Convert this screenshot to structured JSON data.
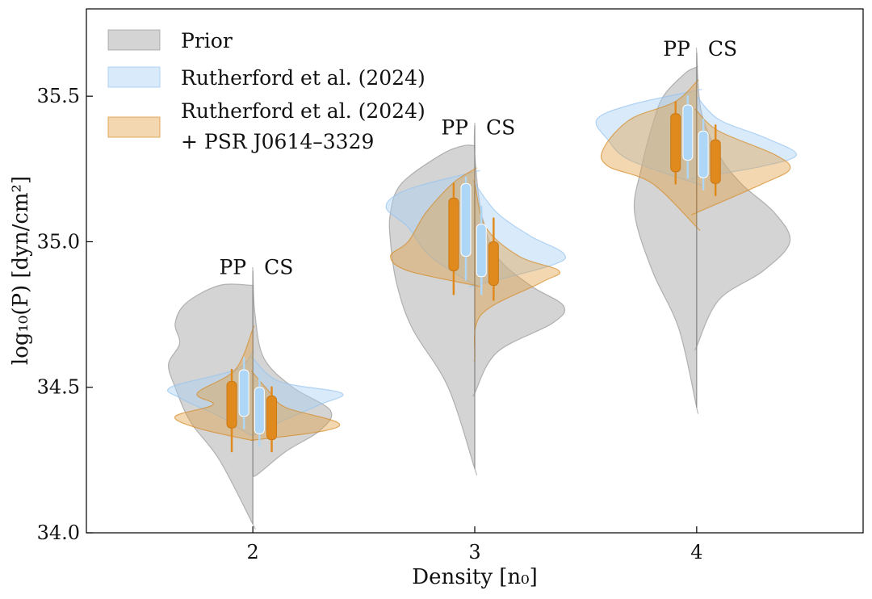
{
  "chart_data": {
    "type": "violin",
    "xlabel": "Density [n₀]",
    "ylabel": "log₁₀(P) [dyn/cm²]",
    "xlim": [
      1.25,
      4.75
    ],
    "ylim": [
      34.0,
      35.8
    ],
    "x_ticks": [
      2,
      3,
      4
    ],
    "x_tick_labels": [
      "2",
      "3",
      "4"
    ],
    "y_ticks": [
      34.0,
      34.5,
      35.0,
      35.5
    ],
    "y_tick_labels": [
      "34.0",
      "34.5",
      "35.0",
      "35.5"
    ],
    "legend_position": "upper-left",
    "legend": [
      {
        "label": "Prior",
        "color": "#b3b3b3"
      },
      {
        "label": "Rutherford et al. (2024)",
        "color": "#b8dbf7"
      },
      {
        "label": "Rutherford et al. (2024)",
        "label2": "+ PSR J0614–3329",
        "color": "#e8b56c"
      }
    ],
    "colors": {
      "prior": "#a0a0a0",
      "rutherford": "#a9d2f5",
      "psr": "#e09a3c",
      "box_orange": "#e08a1e",
      "box_blue": "#aed6f7"
    },
    "side_labels": [
      "PP",
      "CS"
    ],
    "groups": [
      {
        "x": 2,
        "prior": {
          "pp": {
            "y": [
              34.03,
              34.25,
              34.38,
              34.5,
              34.58,
              34.65,
              34.72,
              34.79,
              34.85
            ],
            "w": [
              0.0,
              0.15,
              0.28,
              0.35,
              0.38,
              0.33,
              0.35,
              0.3,
              0.15
            ]
          },
          "cs": {
            "y": [
              34.2,
              34.28,
              34.35,
              34.42,
              34.5,
              34.6,
              34.75,
              34.9
            ],
            "w": [
              0.02,
              0.15,
              0.3,
              0.35,
              0.18,
              0.05,
              0.01,
              0.0
            ]
          }
        },
        "rutherford": {
          "pp": {
            "y": [
              34.34,
              34.4,
              34.46,
              34.5,
              34.56,
              34.62
            ],
            "w": [
              0.02,
              0.15,
              0.32,
              0.37,
              0.08,
              0.0
            ]
          },
          "cs": {
            "y": [
              34.34,
              34.38,
              34.44,
              34.48,
              34.52,
              34.6
            ],
            "w": [
              0.02,
              0.12,
              0.3,
              0.4,
              0.12,
              0.0
            ]
          }
        },
        "psr": {
          "pp": {
            "y": [
              34.32,
              34.36,
              34.4,
              34.44,
              34.48,
              34.56,
              34.7
            ],
            "w": [
              0.02,
              0.25,
              0.35,
              0.18,
              0.25,
              0.08,
              0.0
            ]
          },
          "cs": {
            "y": [
              34.32,
              34.35,
              34.38,
              34.43,
              34.48,
              34.55
            ],
            "w": [
              0.02,
              0.32,
              0.38,
              0.15,
              0.08,
              0.0
            ]
          }
        },
        "boxes": {
          "pp": {
            "orange": {
              "whisker": [
                34.28,
                34.56
              ],
              "box": [
                34.36,
                34.52
              ]
            },
            "blue": {
              "whisker": [
                34.36,
                34.6
              ],
              "box": [
                34.4,
                34.56
              ]
            }
          },
          "cs": {
            "orange": {
              "whisker": [
                34.28,
                34.5
              ],
              "box": [
                34.32,
                34.47
              ]
            },
            "blue": {
              "whisker": [
                34.3,
                34.54
              ],
              "box": [
                34.34,
                34.5
              ]
            }
          }
        }
      },
      {
        "x": 3,
        "prior": {
          "pp": {
            "y": [
              34.22,
              34.5,
              34.7,
              34.85,
              35.0,
              35.1,
              35.2,
              35.3,
              35.33
            ],
            "w": [
              0.0,
              0.12,
              0.28,
              0.35,
              0.38,
              0.38,
              0.33,
              0.15,
              0.05
            ]
          },
          "cs": {
            "y": [
              34.48,
              34.62,
              34.72,
              34.78,
              34.85,
              34.95,
              35.1,
              35.3,
              35.4
            ],
            "w": [
              0.0,
              0.1,
              0.35,
              0.4,
              0.25,
              0.1,
              0.03,
              0.0,
              0.0
            ]
          }
        },
        "rutherford": {
          "pp": {
            "y": [
              34.85,
              34.95,
              35.05,
              35.12,
              35.18,
              35.24
            ],
            "w": [
              0.0,
              0.2,
              0.3,
              0.4,
              0.3,
              0.0
            ]
          },
          "cs": {
            "y": [
              34.85,
              34.92,
              34.96,
              35.02,
              35.1,
              35.2
            ],
            "w": [
              0.0,
              0.35,
              0.4,
              0.25,
              0.1,
              0.0
            ]
          }
        },
        "psr": {
          "pp": {
            "y": [
              34.85,
              34.9,
              34.95,
              35.0,
              35.1,
              35.2,
              35.25
            ],
            "w": [
              0.0,
              0.3,
              0.38,
              0.3,
              0.22,
              0.1,
              0.0
            ]
          },
          "cs": {
            "y": [
              34.6,
              34.75,
              34.86,
              34.9,
              34.95,
              35.05,
              35.2
            ],
            "w": [
              0.0,
              0.03,
              0.3,
              0.38,
              0.2,
              0.05,
              0.0
            ]
          }
        },
        "boxes": {
          "pp": {
            "orange": {
              "whisker": [
                34.82,
                35.2
              ],
              "box": [
                34.9,
                35.15
              ]
            },
            "blue": {
              "whisker": [
                34.87,
                35.22
              ],
              "box": [
                34.95,
                35.2
              ]
            }
          },
          "cs": {
            "orange": {
              "whisker": [
                34.8,
                35.08
              ],
              "box": [
                34.85,
                35.0
              ]
            },
            "blue": {
              "whisker": [
                34.82,
                35.12
              ],
              "box": [
                34.88,
                35.06
              ]
            }
          }
        }
      },
      {
        "x": 4,
        "prior": {
          "pp": {
            "y": [
              34.43,
              34.7,
              34.9,
              35.1,
              35.25,
              35.4,
              35.5,
              35.58,
              35.6
            ],
            "w": [
              0.0,
              0.08,
              0.2,
              0.28,
              0.25,
              0.2,
              0.15,
              0.05,
              0.0
            ]
          },
          "cs": {
            "y": [
              34.64,
              34.8,
              34.9,
              35.0,
              35.1,
              35.2,
              35.3,
              35.45,
              35.65
            ],
            "w": [
              0.0,
              0.1,
              0.3,
              0.42,
              0.35,
              0.2,
              0.1,
              0.02,
              0.0
            ]
          }
        },
        "rutherford": {
          "pp": {
            "y": [
              35.2,
              35.28,
              35.35,
              35.42,
              35.47,
              35.52
            ],
            "w": [
              0.0,
              0.3,
              0.4,
              0.45,
              0.3,
              0.0
            ]
          },
          "cs": {
            "y": [
              35.22,
              35.26,
              35.3,
              35.36,
              35.42,
              35.5
            ],
            "w": [
              0.0,
              0.3,
              0.45,
              0.3,
              0.1,
              0.0
            ]
          }
        },
        "psr": {
          "pp": {
            "y": [
              35.05,
              35.2,
              35.26,
              35.32,
              35.42,
              35.48,
              35.55
            ],
            "w": [
              0.0,
              0.2,
              0.4,
              0.42,
              0.3,
              0.1,
              0.0
            ]
          },
          "cs": {
            "y": [
              35.1,
              35.2,
              35.25,
              35.3,
              35.38,
              35.45
            ],
            "w": [
              0.0,
              0.3,
              0.42,
              0.35,
              0.1,
              0.0
            ]
          }
        },
        "boxes": {
          "pp": {
            "orange": {
              "whisker": [
                35.2,
                35.48
              ],
              "box": [
                35.24,
                35.44
              ]
            },
            "blue": {
              "whisker": [
                35.22,
                35.5
              ],
              "box": [
                35.28,
                35.47
              ]
            }
          },
          "cs": {
            "orange": {
              "whisker": [
                35.16,
                35.4
              ],
              "box": [
                35.2,
                35.35
              ]
            },
            "blue": {
              "whisker": [
                35.18,
                35.42
              ],
              "box": [
                35.22,
                35.38
              ]
            }
          }
        }
      }
    ]
  }
}
